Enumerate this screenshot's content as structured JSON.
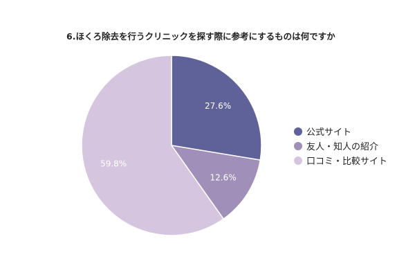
{
  "chart_data": {
    "type": "pie",
    "title": "6.ほくろ除去を行うクリニックを探す際に参考にするものは何ですか",
    "slices": [
      {
        "name": "公式サイト",
        "value": 27.6,
        "label": "27.6%",
        "color": "#5f6199"
      },
      {
        "name": "友人・知人の紹介",
        "value": 12.6,
        "label": "12.6%",
        "color": "#a08fb8"
      },
      {
        "name": "口コミ・比較サイト",
        "value": 59.8,
        "label": "59.8%",
        "color": "#d5c5df"
      }
    ],
    "legend_position": "right",
    "start_angle_deg": 0,
    "direction": "clockwise"
  }
}
